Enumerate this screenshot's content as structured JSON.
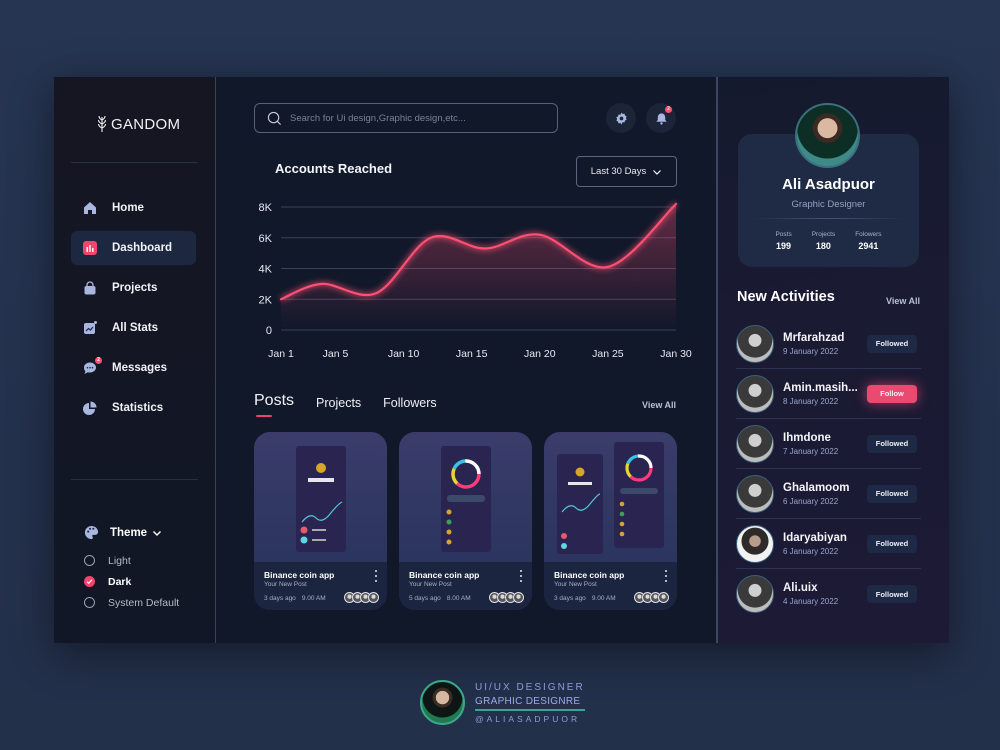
{
  "brand": {
    "name": "GANDOM",
    "icon": "wheat-icon"
  },
  "sidebar": {
    "items": [
      {
        "label": "Home",
        "icon": "home-icon",
        "active": false
      },
      {
        "label": "Dashboard",
        "icon": "bar-chart-icon",
        "active": true
      },
      {
        "label": "Projects",
        "icon": "bag-icon",
        "active": false
      },
      {
        "label": "All Stats",
        "icon": "stats-icon",
        "active": false
      },
      {
        "label": "Messages",
        "icon": "chat-icon",
        "active": false,
        "badge": "2"
      },
      {
        "label": "Statistics",
        "icon": "pie-icon",
        "active": false
      }
    ],
    "theme": {
      "label": "Theme",
      "options": [
        {
          "label": "Light",
          "checked": false
        },
        {
          "label": "Dark",
          "checked": true
        },
        {
          "label": "System Default",
          "checked": false
        }
      ]
    }
  },
  "header": {
    "search_placeholder": "Search for Ui design,Graphic design,etc...",
    "notification_count": "2"
  },
  "chart_card": {
    "title": "Accounts Reached",
    "range_label": "Last 30 Days"
  },
  "chart_data": {
    "type": "line",
    "title": "Accounts Reached",
    "x": [
      "Jan 1",
      "Jan 5",
      "Jan 10",
      "Jan 15",
      "Jan 20",
      "Jan 25",
      "Jan 30"
    ],
    "y_ticks": [
      "0",
      "2K",
      "4K",
      "6K",
      "8K"
    ],
    "ylim": [
      0,
      8000
    ],
    "series": [
      {
        "name": "Accounts Reached",
        "points": [
          {
            "day": 1,
            "value": 2000
          },
          {
            "day": 4,
            "value": 3000
          },
          {
            "day": 8,
            "value": 2400
          },
          {
            "day": 12,
            "value": 6000
          },
          {
            "day": 16,
            "value": 5300
          },
          {
            "day": 20,
            "value": 6200
          },
          {
            "day": 25,
            "value": 4100
          },
          {
            "day": 30,
            "value": 8200
          }
        ]
      }
    ],
    "color": "#ff4f73",
    "grid": true
  },
  "posts": {
    "tabs": [
      "Posts",
      "Projects",
      "Followers"
    ],
    "active_tab": "Posts",
    "view_all": "View All",
    "cards": [
      {
        "title": "Binance coin app",
        "subtitle": "Your New Post",
        "ago": "3 days ago",
        "time": "9.00 AM"
      },
      {
        "title": "Binance coin app",
        "subtitle": "Your New Post",
        "ago": "5 days ago",
        "time": "8.00 AM"
      },
      {
        "title": "Binance coin app",
        "subtitle": "Your New Post",
        "ago": "3 days ago",
        "time": "9.00 AM"
      }
    ]
  },
  "profile": {
    "name": "Ali Asadpuor",
    "role": "Graphic Designer",
    "stats": [
      {
        "label": "Posts",
        "value": "199"
      },
      {
        "label": "Projects",
        "value": "180"
      },
      {
        "label": "Folowers",
        "value": "2941"
      }
    ]
  },
  "activities": {
    "title": "New Activities",
    "view_all": "View All",
    "items": [
      {
        "name": "Mrfarahzad",
        "date": "9 January 2022",
        "action": "Followed"
      },
      {
        "name": "Amin.masih...",
        "date": "8 January 2022",
        "action": "Follow"
      },
      {
        "name": "Ihmdone",
        "date": "7 January 2022",
        "action": "Followed"
      },
      {
        "name": "Ghalamoom",
        "date": "6 January 2022",
        "action": "Followed"
      },
      {
        "name": "Idaryabiyan",
        "date": "6 January 2022",
        "action": "Followed"
      },
      {
        "name": "Ali.uix",
        "date": "4 January 2022",
        "action": "Followed"
      }
    ]
  },
  "signature": {
    "line1": "UI/UX DESIGNER",
    "line2": "GRAPHIC DESIGNRE",
    "line3": "@ALIASADPUOR"
  },
  "colors": {
    "accent": "#ff4f73",
    "panel": "#121828",
    "card": "#1f2b45",
    "background": "#263552"
  }
}
